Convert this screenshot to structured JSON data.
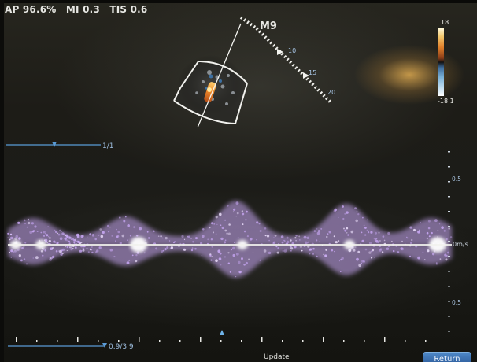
{
  "header": {
    "ap_label": "AP 96.6%",
    "mi_label": "MI 0.3",
    "tis_label": "TIS 0.6"
  },
  "probe": {
    "name": "M9",
    "depth_markers": [
      "10",
      "15",
      "20"
    ]
  },
  "color_scale": {
    "max_label": "18.1",
    "min_label": "-18.1"
  },
  "doppler": {
    "control_label": "1/1",
    "velocity_ticks": [
      "0.5",
      "0m/s",
      "0.5"
    ],
    "scale_value": "0.9/3.9"
  },
  "buttons": {
    "update_label": "Update",
    "return_label": "Return"
  },
  "colors": {
    "spectrum": "#c9a8f5",
    "spectrum_core": "#ffffff",
    "ui_blue": "#5a9bd6",
    "label_blue": "#9fbfe0"
  },
  "icons": [
    "probe-sector-icon",
    "depth-marker-icon",
    "baseline-cursor-icon",
    "time-marker-icon"
  ]
}
